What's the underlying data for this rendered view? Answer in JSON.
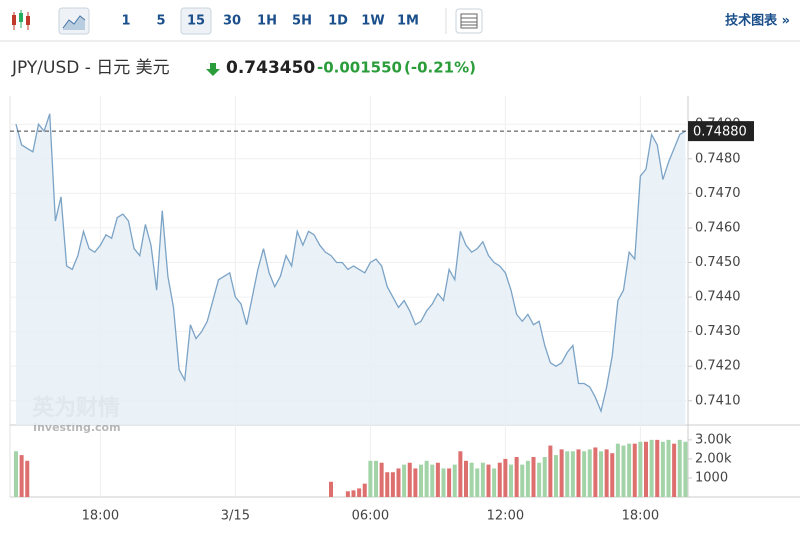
{
  "toolbar": {
    "intervals": [
      "1",
      "5",
      "15",
      "30",
      "1H",
      "5H",
      "1D",
      "1W",
      "1M"
    ],
    "active": "15",
    "link": "技术图表 »"
  },
  "header": {
    "symbol": "JPY/USD - 日元 美元",
    "price": "0.743450",
    "change": "-0.001550",
    "change_pct": "(-0.21%)"
  },
  "chart_data": {
    "type": "line",
    "grid": true,
    "watermark": [
      "英为财情",
      "Investing.com"
    ],
    "categories": [
      null,
      null,
      null,
      null,
      null,
      null,
      null,
      null,
      null,
      null,
      null,
      null,
      null,
      null,
      null,
      "18:00",
      null,
      null,
      null,
      null,
      null,
      null,
      null,
      null,
      null,
      null,
      null,
      null,
      null,
      null,
      null,
      null,
      null,
      null,
      null,
      null,
      null,
      null,
      null,
      "3/15",
      null,
      null,
      null,
      null,
      null,
      null,
      null,
      null,
      null,
      null,
      null,
      null,
      null,
      null,
      null,
      null,
      null,
      null,
      null,
      null,
      null,
      null,
      null,
      "06:00",
      null,
      null,
      null,
      null,
      null,
      null,
      null,
      null,
      null,
      null,
      null,
      null,
      null,
      null,
      null,
      null,
      null,
      null,
      null,
      null,
      null,
      null,
      null,
      "12:00",
      null,
      null,
      null,
      null,
      null,
      null,
      null,
      null,
      null,
      null,
      null,
      null,
      null,
      null,
      null,
      null,
      null,
      null,
      null,
      null,
      null,
      null,
      null,
      "18:00",
      null,
      null,
      null,
      null,
      null,
      null,
      null,
      null
    ],
    "series": [
      {
        "color": "#7ba3c6",
        "values": [
          0.749,
          0.7484,
          0.7483,
          0.7482,
          0.749,
          0.7488,
          0.7493,
          0.7462,
          0.7469,
          0.7449,
          0.7448,
          0.7452,
          0.7459,
          0.7454,
          0.7453,
          0.7455,
          0.7458,
          0.7457,
          0.7463,
          0.7464,
          0.7462,
          0.7454,
          0.7452,
          0.7461,
          0.7455,
          0.7442,
          0.7465,
          0.7446,
          0.7437,
          0.7419,
          0.7416,
          0.7432,
          0.7428,
          0.743,
          0.7433,
          0.7439,
          0.7445,
          0.7446,
          0.7447,
          0.744,
          0.7438,
          0.7432,
          0.744,
          0.7448,
          0.7454,
          0.7447,
          0.7443,
          0.7446,
          0.7452,
          0.7449,
          0.7459,
          0.7455,
          0.7459,
          0.7458,
          0.7455,
          0.7453,
          0.7452,
          0.745,
          0.745,
          0.7448,
          0.7449,
          0.7448,
          0.7447,
          0.745,
          0.7451,
          0.7449,
          0.7443,
          0.744,
          0.7437,
          0.7439,
          0.7436,
          0.7432,
          0.7433,
          0.7436,
          0.7438,
          0.7441,
          0.7439,
          0.7448,
          0.7445,
          0.7459,
          0.7455,
          0.7453,
          0.7454,
          0.7456,
          0.7452,
          0.745,
          0.7449,
          0.7447,
          0.7442,
          0.7435,
          0.7433,
          0.7435,
          0.7432,
          0.7433,
          0.7426,
          0.7421,
          0.742,
          0.7421,
          0.7424,
          0.7426,
          0.7415,
          0.7415,
          0.7414,
          0.7411,
          0.7407,
          0.7414,
          0.7423,
          0.7439,
          0.7442,
          0.7453,
          0.7451,
          0.7475,
          0.7477,
          0.7487,
          0.7484,
          0.7474,
          0.7479,
          0.7483,
          0.7487,
          0.7488
        ]
      }
    ],
    "ylim": [
      0.7403,
      0.7497
    ],
    "yticks": [
      {
        "value": 0.741,
        "label": "0.7410"
      },
      {
        "value": 0.742,
        "label": "0.7420"
      },
      {
        "value": 0.743,
        "label": "0.7430"
      },
      {
        "value": 0.744,
        "label": "0.7440"
      },
      {
        "value": 0.745,
        "label": "0.7450"
      },
      {
        "value": 0.746,
        "label": "0.7460"
      },
      {
        "value": 0.747,
        "label": "0.7470"
      },
      {
        "value": 0.748,
        "label": "0.7480"
      },
      {
        "value": 0.749,
        "label": "0.7490"
      }
    ],
    "last_price": {
      "value": 0.7488,
      "label": "0.74880"
    },
    "volume": {
      "type": "bar",
      "up_color": "#a3d4a8",
      "down_color": "#de6f6f",
      "values": [
        2400,
        2200,
        1900,
        null,
        null,
        null,
        null,
        null,
        null,
        null,
        null,
        null,
        null,
        null,
        null,
        null,
        null,
        null,
        null,
        null,
        null,
        null,
        null,
        null,
        null,
        null,
        null,
        null,
        null,
        null,
        null,
        null,
        null,
        null,
        null,
        null,
        null,
        null,
        null,
        null,
        null,
        null,
        null,
        null,
        null,
        null,
        null,
        null,
        null,
        null,
        null,
        null,
        null,
        null,
        null,
        null,
        800,
        null,
        null,
        300,
        350,
        450,
        700,
        1900,
        1900,
        1800,
        1300,
        1300,
        1500,
        1700,
        1800,
        1500,
        1700,
        1900,
        1700,
        1800,
        1500,
        1500,
        1700,
        2400,
        1900,
        1800,
        1500,
        1800,
        1700,
        1500,
        1800,
        2000,
        1700,
        2100,
        1700,
        1900,
        2100,
        1800,
        2100,
        2700,
        2200,
        2500,
        2400,
        2400,
        2500,
        2400,
        2500,
        2600,
        2400,
        2500,
        2300,
        2800,
        2700,
        2800,
        2800,
        2900,
        2900,
        3000,
        3000,
        2900,
        3000,
        2800,
        3000,
        2900
      ],
      "up": [
        true,
        false,
        false,
        null,
        null,
        null,
        null,
        null,
        null,
        null,
        null,
        null,
        null,
        null,
        null,
        null,
        null,
        null,
        null,
        null,
        null,
        null,
        null,
        null,
        null,
        null,
        null,
        null,
        null,
        null,
        null,
        null,
        null,
        null,
        null,
        null,
        null,
        null,
        null,
        null,
        null,
        null,
        null,
        null,
        null,
        null,
        null,
        null,
        null,
        null,
        null,
        null,
        null,
        null,
        null,
        null,
        false,
        null,
        null,
        false,
        false,
        false,
        false,
        true,
        true,
        false,
        false,
        false,
        false,
        true,
        false,
        false,
        true,
        true,
        true,
        false,
        true,
        false,
        true,
        false,
        false,
        true,
        true,
        true,
        false,
        true,
        false,
        false,
        true,
        false,
        true,
        true,
        false,
        true,
        true,
        false,
        true,
        false,
        true,
        true,
        false,
        true,
        true,
        false,
        true,
        false,
        false,
        true,
        true,
        true,
        false,
        true,
        false,
        true,
        false,
        true,
        true,
        false,
        true,
        true
      ],
      "ylim": [
        0,
        3150
      ],
      "yticks": [
        1000,
        {
          "value": 2000,
          "label": "2.00k"
        },
        {
          "value": 3000,
          "label": "3.00k"
        }
      ]
    }
  }
}
